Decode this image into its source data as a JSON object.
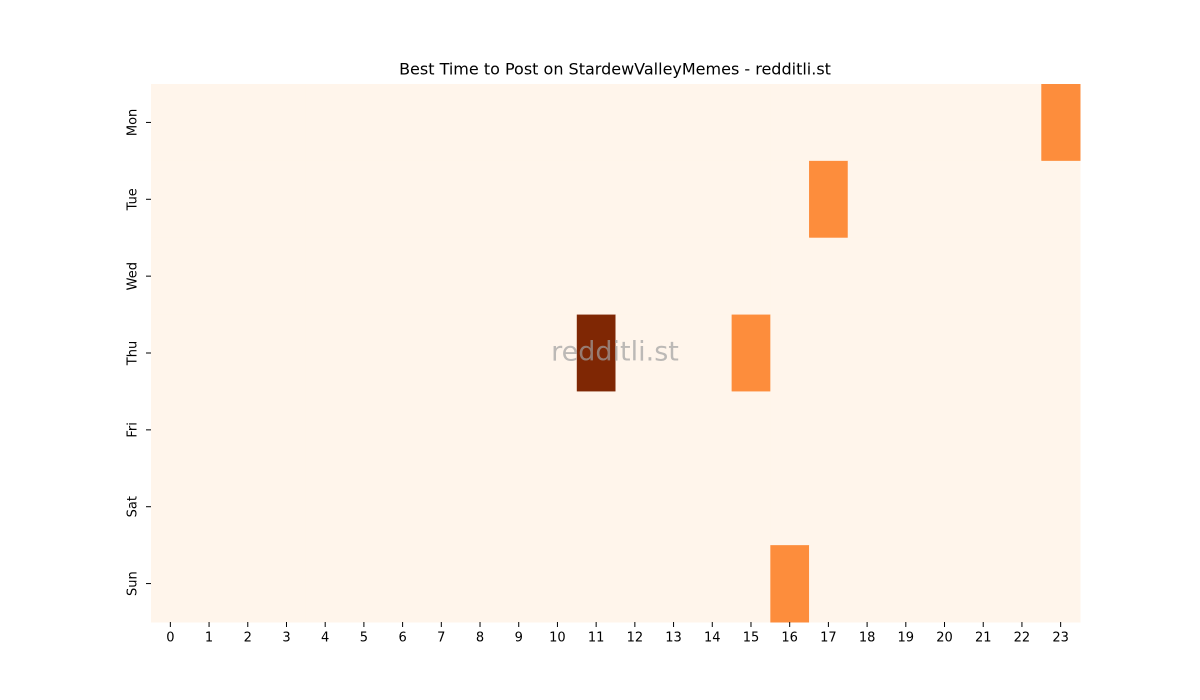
{
  "chart_data": {
    "type": "heatmap",
    "title": "Best Time to Post on StardewValleyMemes - redditli.st",
    "watermark": "redditli.st",
    "x": [
      0,
      1,
      2,
      3,
      4,
      5,
      6,
      7,
      8,
      9,
      10,
      11,
      12,
      13,
      14,
      15,
      16,
      17,
      18,
      19,
      20,
      21,
      22,
      23
    ],
    "y": [
      "Mon",
      "Tue",
      "Wed",
      "Thu",
      "Fri",
      "Sat",
      "Sun"
    ],
    "values": [
      [
        0,
        0,
        0,
        0,
        0,
        0,
        0,
        0,
        0,
        0,
        0,
        0,
        0,
        0,
        0,
        0,
        0,
        0,
        0,
        0,
        0,
        0,
        0,
        1
      ],
      [
        0,
        0,
        0,
        0,
        0,
        0,
        0,
        0,
        0,
        0,
        0,
        0,
        0,
        0,
        0,
        0,
        0,
        1,
        0,
        0,
        0,
        0,
        0,
        0
      ],
      [
        0,
        0,
        0,
        0,
        0,
        0,
        0,
        0,
        0,
        0,
        0,
        0,
        0,
        0,
        0,
        0,
        0,
        0,
        0,
        0,
        0,
        0,
        0,
        0
      ],
      [
        0,
        0,
        0,
        0,
        0,
        0,
        0,
        0,
        0,
        0,
        0,
        2,
        0,
        0,
        0,
        1,
        0,
        0,
        0,
        0,
        0,
        0,
        0,
        0
      ],
      [
        0,
        0,
        0,
        0,
        0,
        0,
        0,
        0,
        0,
        0,
        0,
        0,
        0,
        0,
        0,
        0,
        0,
        0,
        0,
        0,
        0,
        0,
        0,
        0
      ],
      [
        0,
        0,
        0,
        0,
        0,
        0,
        0,
        0,
        0,
        0,
        0,
        0,
        0,
        0,
        0,
        0,
        0,
        0,
        0,
        0,
        0,
        0,
        0,
        0
      ],
      [
        0,
        0,
        0,
        0,
        0,
        0,
        0,
        0,
        0,
        0,
        0,
        0,
        0,
        0,
        0,
        0,
        1,
        0,
        0,
        0,
        0,
        0,
        0,
        0
      ]
    ],
    "colormap": [
      "#fff5eb",
      "#fd8d3c",
      "#7f2704"
    ]
  }
}
